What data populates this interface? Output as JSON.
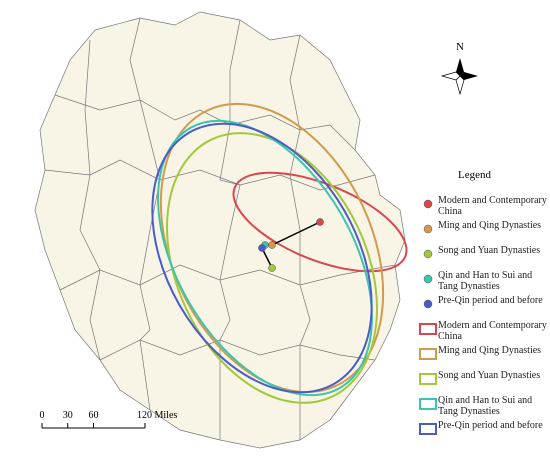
{
  "map": {
    "north": "N",
    "legend": {
      "title": "Legend",
      "items": [
        {
          "name": "Modern and Contemporary China",
          "color": "#d9464e",
          "symbol": "point"
        },
        {
          "name": "Ming and Qing Dynasties",
          "color": "#d29a4a",
          "symbol": "point"
        },
        {
          "name": "Song and Yuan Dynasties",
          "color": "#a3c83a",
          "symbol": "point"
        },
        {
          "name": "Qin and Han to Sui and Tang Dynasties",
          "color": "#3cc4b0",
          "symbol": "point"
        },
        {
          "name": "Pre-Qin period and before",
          "color": "#4a5cc8",
          "symbol": "point"
        },
        {
          "name": "Modern and Contemporary China",
          "color": "#d9464e",
          "symbol": "ellipse"
        },
        {
          "name": "Ming and Qing Dynasties",
          "color": "#d29a4a",
          "symbol": "ellipse"
        },
        {
          "name": "Song and Yuan Dynasties",
          "color": "#a3c83a",
          "symbol": "ellipse"
        },
        {
          "name": "Qin and Han to Sui and Tang Dynasties",
          "color": "#3cc4b0",
          "symbol": "ellipse"
        },
        {
          "name": "Pre-Qin period and before",
          "color": "#4a5cc8",
          "symbol": "ellipse"
        }
      ]
    },
    "scale_bar": {
      "ticks": [
        0,
        30,
        60,
        {
          "value": 120,
          "label": "120 Miles"
        }
      ]
    }
  }
}
